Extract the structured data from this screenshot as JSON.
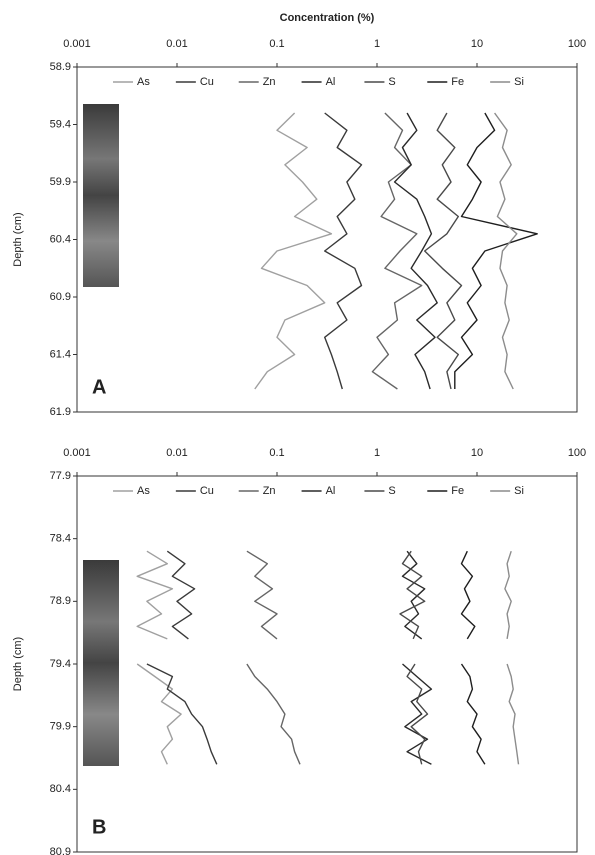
{
  "chart_data": [
    {
      "type": "line",
      "title": "Concentration (%)",
      "ylabel": "Depth (cm)",
      "panel_label": "A",
      "xscale": "log",
      "y_inverted": true,
      "legend": "top",
      "xlim": [
        0.001,
        100
      ],
      "xticks": [
        0.001,
        0.01,
        0.1,
        1,
        10,
        100
      ],
      "ylim": [
        58.9,
        61.9
      ],
      "yticks": [
        58.9,
        59.4,
        59.9,
        60.4,
        60.9,
        61.4,
        61.9
      ],
      "depth": [
        59.3,
        59.45,
        59.6,
        59.75,
        59.9,
        60.05,
        60.2,
        60.35,
        60.5,
        60.65,
        60.8,
        60.95,
        61.1,
        61.25,
        61.4,
        61.55,
        61.7
      ],
      "series": [
        {
          "name": "As",
          "color": "#a0a0a0",
          "values": [
            0.15,
            0.1,
            0.2,
            0.12,
            0.18,
            0.25,
            0.15,
            0.35,
            0.1,
            0.07,
            0.2,
            0.3,
            0.12,
            0.1,
            0.15,
            0.08,
            0.06
          ]
        },
        {
          "name": "Cu",
          "color": "#3a3a3a",
          "values": [
            0.3,
            0.5,
            0.4,
            0.7,
            0.5,
            0.6,
            0.4,
            0.5,
            0.3,
            0.6,
            0.7,
            0.4,
            0.5,
            0.3,
            0.35,
            0.4,
            0.45
          ]
        },
        {
          "name": "Zn",
          "color": "#666666",
          "values": [
            1.2,
            1.8,
            1.5,
            2.2,
            1.3,
            1.5,
            1.1,
            2.5,
            1.7,
            1.2,
            2.8,
            1.5,
            1.6,
            1.0,
            1.3,
            0.9,
            1.6
          ]
        },
        {
          "name": "Al",
          "color": "#2a2a2a",
          "values": [
            2,
            2.5,
            1.8,
            2.2,
            1.5,
            2.5,
            3,
            3.5,
            2.8,
            2.2,
            3.2,
            4,
            2.5,
            3.8,
            2.4,
            3,
            3.4
          ]
        },
        {
          "name": "S",
          "color": "#4a4a4a",
          "values": [
            5,
            4,
            6,
            4.5,
            5.5,
            4,
            6.5,
            5,
            3,
            4.5,
            7,
            5,
            6,
            4,
            6.5,
            5,
            5.5
          ]
        },
        {
          "name": "Fe",
          "color": "#1e1e1e",
          "values": [
            12,
            15,
            10,
            8,
            11,
            9,
            7,
            40,
            12,
            9,
            11,
            8,
            10,
            7,
            9,
            6,
            6
          ]
        },
        {
          "name": "Si",
          "color": "#8c8c8c",
          "values": [
            15,
            20,
            18,
            22,
            17,
            19,
            16,
            25,
            18,
            17,
            20,
            19,
            21,
            18,
            20,
            19,
            23
          ]
        }
      ]
    },
    {
      "type": "line",
      "ylabel": "Depth (cm)",
      "panel_label": "B",
      "xscale": "log",
      "y_inverted": true,
      "legend": "top",
      "xlim": [
        0.001,
        100
      ],
      "xticks": [
        0.001,
        0.01,
        0.1,
        1,
        10,
        100
      ],
      "ylim": [
        77.9,
        80.9
      ],
      "yticks": [
        77.9,
        78.4,
        78.9,
        79.4,
        79.9,
        80.4,
        80.9
      ],
      "depth": [
        78.5,
        78.6,
        78.7,
        78.8,
        78.9,
        79.0,
        79.1,
        79.2,
        null,
        79.4,
        79.5,
        79.6,
        79.7,
        79.8,
        79.9,
        80.0,
        80.1,
        80.2
      ],
      "series": [
        {
          "name": "As",
          "color": "#a0a0a0",
          "values": [
            0.005,
            0.008,
            0.004,
            0.009,
            0.005,
            0.007,
            0.004,
            0.008,
            null,
            0.004,
            0.006,
            0.009,
            0.007,
            0.011,
            0.008,
            0.009,
            0.007,
            0.008
          ]
        },
        {
          "name": "Cu",
          "color": "#3a3a3a",
          "values": [
            0.008,
            0.012,
            0.009,
            0.015,
            0.01,
            0.014,
            0.009,
            0.013,
            null,
            0.005,
            0.009,
            0.008,
            0.012,
            0.014,
            0.018,
            0.02,
            0.022,
            0.025
          ]
        },
        {
          "name": "Zn",
          "color": "#666666",
          "values": [
            0.05,
            0.08,
            0.06,
            0.09,
            0.06,
            0.1,
            0.07,
            0.1,
            null,
            0.05,
            0.06,
            0.08,
            0.1,
            0.12,
            0.11,
            0.14,
            0.15,
            0.17
          ]
        },
        {
          "name": "Al",
          "color": "#2a2a2a",
          "values": [
            2,
            2.5,
            1.8,
            3,
            2.2,
            2.6,
            1.9,
            2.8,
            null,
            1.8,
            2.5,
            3.5,
            2.2,
            2.8,
            1.9,
            3.2,
            2,
            3.5
          ]
        },
        {
          "name": "S",
          "color": "#4a4a4a",
          "values": [
            2.2,
            1.8,
            2.8,
            2,
            3,
            1.7,
            2.6,
            2.3,
            null,
            2.4,
            2,
            2.8,
            2.5,
            3.2,
            2.2,
            3,
            2.6,
            2.8
          ]
        },
        {
          "name": "Fe",
          "color": "#1e1e1e",
          "values": [
            8,
            7,
            9,
            7.5,
            8.5,
            7,
            9.5,
            8,
            null,
            7,
            8.5,
            9,
            8,
            10,
            9,
            11,
            10,
            12
          ]
        },
        {
          "name": "Si",
          "color": "#8c8c8c",
          "values": [
            22,
            20,
            21,
            19,
            22,
            20,
            21,
            20,
            null,
            20,
            22,
            23,
            21,
            24,
            23,
            24,
            25,
            26
          ]
        }
      ]
    }
  ]
}
